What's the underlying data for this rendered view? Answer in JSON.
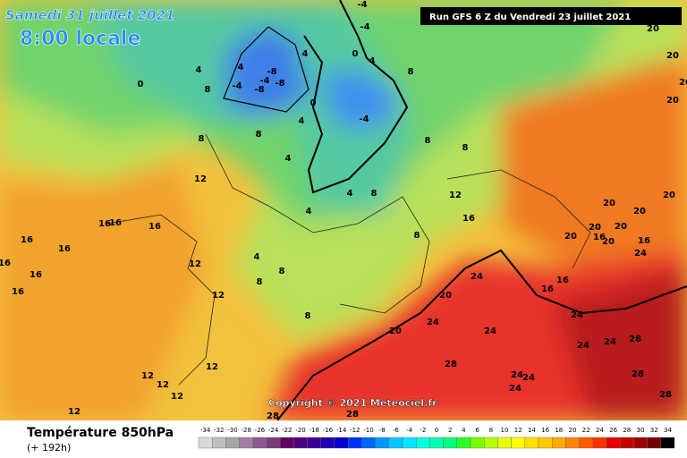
{
  "header": {
    "date": "Samedi 31 juillet 2021",
    "time": "8:00 locale",
    "run": "Run GFS 6 Z du Vendredi 23 juillet 2021"
  },
  "map": {
    "copyright": "Copyright © 2021 Meteociel.fr",
    "contour_labels": [
      "-4",
      "-4",
      "0",
      "4",
      "-4",
      "-8",
      "-4",
      "-8",
      "-8",
      "-4",
      "4",
      "4",
      "4",
      "8",
      "0",
      "0",
      "4",
      "8",
      "8",
      "4",
      "8",
      "8",
      "8",
      "8",
      "4",
      "4",
      "12",
      "12",
      "16",
      "8",
      "4",
      "8",
      "8",
      "12",
      "12",
      "16",
      "16",
      "16",
      "16",
      "16",
      "16",
      "16",
      "16",
      "12",
      "12",
      "12",
      "12",
      "12",
      "8",
      "20",
      "24",
      "24",
      "20",
      "24",
      "24",
      "24",
      "24",
      "28",
      "28",
      "28",
      "28",
      "24",
      "24",
      "24",
      "28",
      "28",
      "20",
      "20",
      "20",
      "20",
      "16",
      "20",
      "20",
      "16",
      "24",
      "20",
      "16",
      "16",
      "20",
      "20",
      "20",
      "20"
    ]
  },
  "footer": {
    "title": "Température 850hPa",
    "lead": "(+ 192h)",
    "scale": {
      "values": [
        -34,
        -32,
        -30,
        -28,
        -26,
        -24,
        -22,
        -20,
        -18,
        -16,
        -14,
        -12,
        -10,
        -8,
        -6,
        -4,
        -2,
        0,
        2,
        4,
        6,
        8,
        10,
        12,
        14,
        16,
        18,
        20,
        22,
        24,
        26,
        28,
        30,
        32,
        34
      ],
      "colors": [
        "#d9d9d9",
        "#bfbfbf",
        "#a6a6a6",
        "#a07fa0",
        "#8c5a8c",
        "#7a3c7a",
        "#640064",
        "#4b0082",
        "#3c0096",
        "#1e00b4",
        "#0000d2",
        "#0032ff",
        "#0064ff",
        "#0096ff",
        "#00c8ff",
        "#00e6ff",
        "#00ffe0",
        "#00ffb4",
        "#00ff78",
        "#28ff28",
        "#78ff00",
        "#b4ff00",
        "#e6ff00",
        "#ffff00",
        "#ffe100",
        "#ffc800",
        "#ffaa00",
        "#ff8200",
        "#ff5a00",
        "#ff3200",
        "#e60000",
        "#c80000",
        "#a00000",
        "#780000",
        "#000000"
      ]
    }
  }
}
